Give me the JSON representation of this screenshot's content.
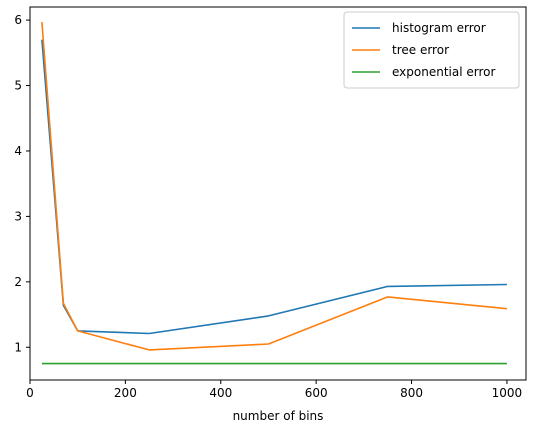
{
  "chart_data": {
    "type": "line",
    "title": "",
    "xlabel": "number of bins",
    "ylabel": "",
    "xlim": [
      0,
      1040
    ],
    "ylim": [
      0.5,
      6.2
    ],
    "xticks": [
      0,
      200,
      400,
      600,
      800,
      1000
    ],
    "yticks": [
      1,
      2,
      3,
      4,
      5,
      6
    ],
    "grid": false,
    "legend_position": "top-right",
    "series": [
      {
        "name": "histogram error",
        "color": "#1f77b4",
        "x": [
          25,
          70,
          100,
          250,
          500,
          750,
          1000
        ],
        "values": [
          5.7,
          1.64,
          1.25,
          1.21,
          1.48,
          1.93,
          1.96
        ]
      },
      {
        "name": "tree error",
        "color": "#ff7f0e",
        "x": [
          25,
          70,
          100,
          250,
          500,
          750,
          1000
        ],
        "values": [
          5.97,
          1.67,
          1.25,
          0.96,
          1.05,
          1.77,
          1.59
        ]
      },
      {
        "name": "exponential error",
        "color": "#2ca02c",
        "x": [
          25,
          70,
          100,
          250,
          500,
          750,
          1000
        ],
        "values": [
          0.75,
          0.75,
          0.75,
          0.75,
          0.75,
          0.75,
          0.75
        ]
      }
    ]
  }
}
